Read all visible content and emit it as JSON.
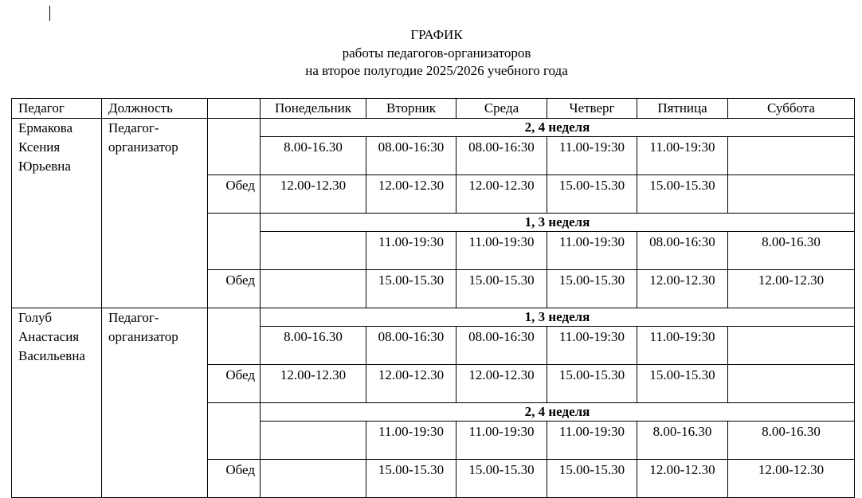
{
  "document": {
    "title": "ГРАФИК",
    "subtitle1": "работы педагогов-организаторов",
    "subtitle2": "на второе полугодие 2025/2026 учебного года"
  },
  "table": {
    "headers": [
      "Педагог",
      "Должность",
      "",
      "Понедельник",
      "Вторник",
      "Среда",
      "Четверг",
      "Пятница",
      "Суббота"
    ],
    "lunch_label": "Обед",
    "staff": [
      {
        "name": "Ермакова Ксения Юрьевна",
        "position": "Педагог-организатор",
        "weeks": [
          {
            "label": "2, 4 неделя",
            "work": [
              "8.00-16.30",
              "08.00-16:30",
              "08.00-16:30",
              "11.00-19:30",
              "11.00-19:30",
              ""
            ],
            "lunch": [
              "12.00-12.30",
              "12.00-12.30",
              "12.00-12.30",
              "15.00-15.30",
              "15.00-15.30",
              ""
            ]
          },
          {
            "label": "1, 3 неделя",
            "work": [
              "",
              "11.00-19:30",
              "11.00-19:30",
              "11.00-19:30",
              "08.00-16:30",
              "8.00-16.30"
            ],
            "lunch": [
              "",
              "15.00-15.30",
              "15.00-15.30",
              "15.00-15.30",
              "12.00-12.30",
              "12.00-12.30"
            ]
          }
        ]
      },
      {
        "name": "Голуб Анастасия Васильевна",
        "position": "Педагог-организатор",
        "weeks": [
          {
            "label": "1, 3 неделя",
            "work": [
              "8.00-16.30",
              "08.00-16:30",
              "08.00-16:30",
              "11.00-19:30",
              "11.00-19:30",
              ""
            ],
            "lunch": [
              "12.00-12.30",
              "12.00-12.30",
              "12.00-12.30",
              "15.00-15.30",
              "15.00-15.30",
              ""
            ]
          },
          {
            "label": "2, 4 неделя",
            "work": [
              "",
              "11.00-19:30",
              "11.00-19:30",
              "11.00-19:30",
              "8.00-16.30",
              "8.00-16.30"
            ],
            "lunch": [
              "",
              "15.00-15.30",
              "15.00-15.30",
              "15.00-15.30",
              "12.00-12.30",
              "12.00-12.30"
            ]
          }
        ]
      }
    ]
  }
}
